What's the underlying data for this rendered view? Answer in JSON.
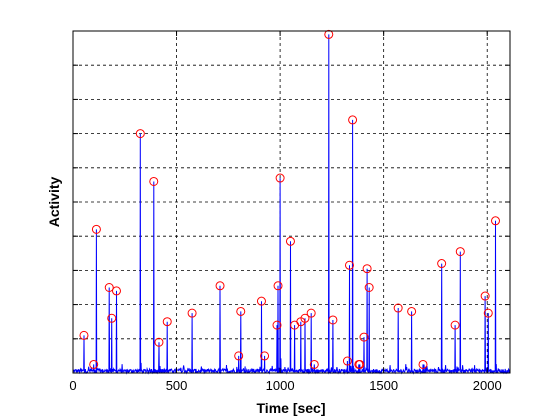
{
  "chart_data": {
    "type": "line",
    "title": "",
    "xlabel": "Time [sec]",
    "ylabel": "Activity",
    "xlim": [
      0,
      2110
    ],
    "ylim": [
      0,
      10
    ],
    "xticks": [
      0,
      500,
      1000,
      1500,
      2000
    ],
    "yticks": [
      0,
      1,
      2,
      3,
      4,
      5,
      6,
      7,
      8,
      9,
      10
    ],
    "ytick_labels_shown": false,
    "grid": true,
    "legend": "none",
    "colors": {
      "line": "#0000ff",
      "marker": "#ff0000",
      "grid": "#000000",
      "background": "#ffffff"
    },
    "baseline_noise": 0.12,
    "series": [
      {
        "x": [
          53,
          100,
          113,
          175,
          187,
          210,
          325,
          390,
          415,
          455,
          575,
          710,
          800,
          810,
          910,
          925,
          985,
          990,
          1000,
          1050,
          1070,
          1100,
          1120,
          1150,
          1165,
          1235,
          1255,
          1325,
          1335,
          1350,
          1380,
          1385,
          1405,
          1420,
          1430,
          1570,
          1635,
          1690,
          1780,
          1845,
          1870,
          1990,
          2005,
          2040
        ],
        "y": [
          1.1,
          0.25,
          4.2,
          2.5,
          1.6,
          2.4,
          7.0,
          5.6,
          0.9,
          1.5,
          1.75,
          2.55,
          0.5,
          1.8,
          2.1,
          0.5,
          1.4,
          2.55,
          5.7,
          3.85,
          1.4,
          1.5,
          1.6,
          1.75,
          0.25,
          9.9,
          1.55,
          0.35,
          3.15,
          7.4,
          0.25,
          0.25,
          1.05,
          3.05,
          2.5,
          1.9,
          1.8,
          0.25,
          3.2,
          1.4,
          3.55,
          2.25,
          1.75,
          4.45
        ]
      }
    ]
  }
}
